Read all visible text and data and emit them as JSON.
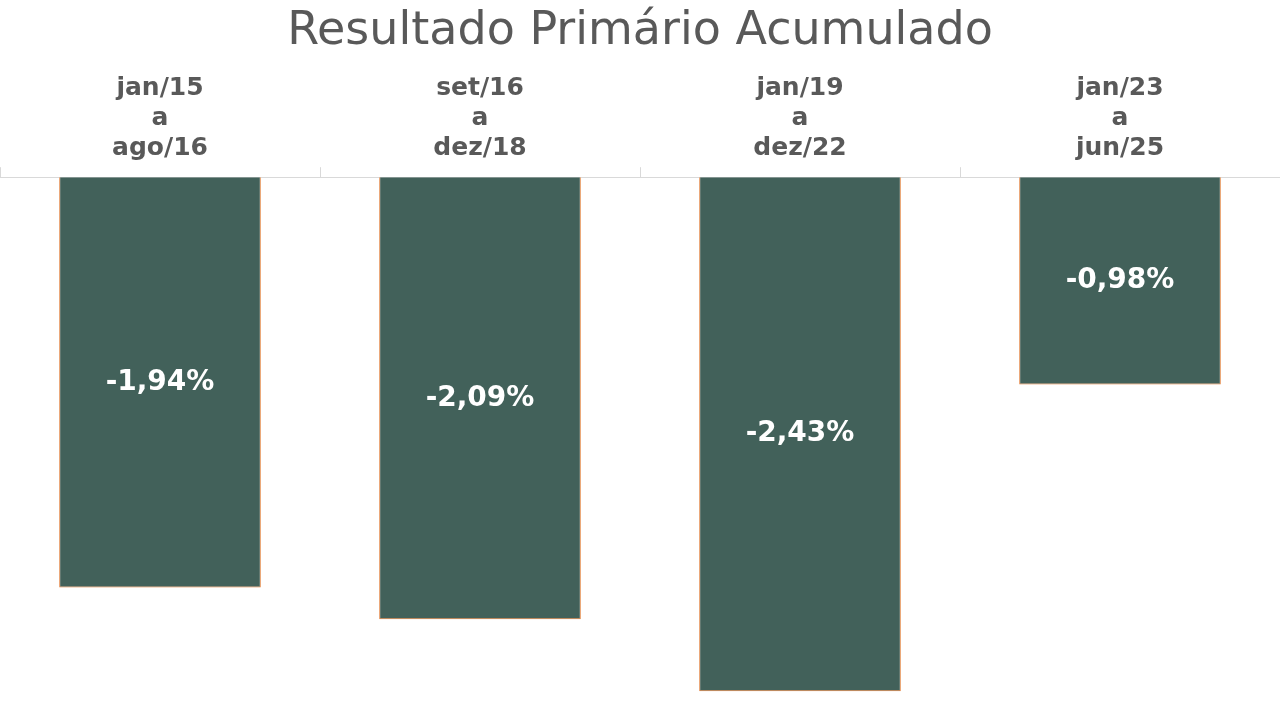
{
  "chart_data": {
    "type": "bar",
    "title": "Resultado Primário Acumulado",
    "categories": [
      "jan/15\na\nago/16",
      "set/16\na\ndez/18",
      "jan/19\na\ndez/22",
      "jan/23\na\njun/25"
    ],
    "values": [
      -1.94,
      -2.09,
      -2.43,
      -0.98
    ],
    "value_labels": [
      "-1,94%",
      "-2,09%",
      "-2,43%",
      "-0,98%"
    ],
    "color": "#42615a",
    "grid": false,
    "legend": false,
    "tick_labels": "x"
  }
}
